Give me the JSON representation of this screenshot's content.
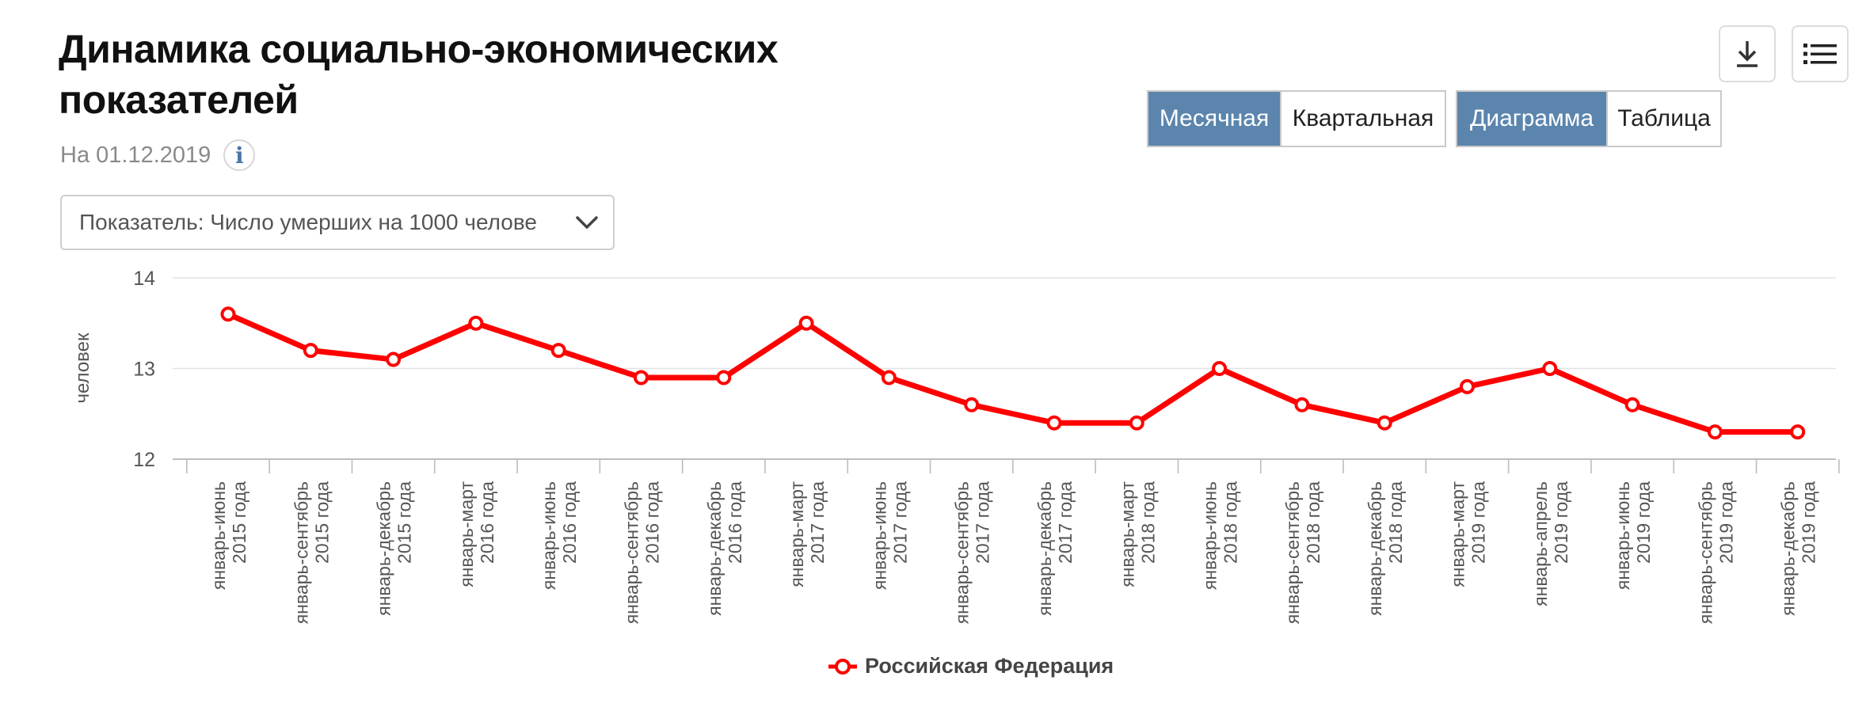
{
  "header": {
    "title": "Динамика социально-экономических показателей",
    "date": "На 01.12.2019",
    "info_label": "i"
  },
  "indicator": {
    "label": "Показатель: Число умерших на 1000 челове"
  },
  "period_toggle": {
    "monthly": "Месячная",
    "quarterly": "Квартальная",
    "active": "monthly"
  },
  "view_toggle": {
    "chart": "Диаграмма",
    "table": "Таблица",
    "active": "chart"
  },
  "icons": {
    "download": "download-icon",
    "menu": "list-menu-icon",
    "info": "info-icon",
    "chevron": "chevron-down-icon"
  },
  "colors": {
    "accent": "#5b85ad",
    "series": "#ff0000"
  },
  "chart_data": {
    "type": "line",
    "ylabel": "человек",
    "ylim": [
      12,
      14
    ],
    "yticks": [
      12,
      13,
      14
    ],
    "grid": true,
    "legend_position": "bottom-center",
    "categories": [
      [
        "январь-июнь",
        "2015 года"
      ],
      [
        "январь-сентябрь",
        "2015 года"
      ],
      [
        "январь-декабрь",
        "2015 года"
      ],
      [
        "январь-март",
        "2016 года"
      ],
      [
        "январь-июнь",
        "2016 года"
      ],
      [
        "январь-сентябрь",
        "2016 года"
      ],
      [
        "январь-декабрь",
        "2016 года"
      ],
      [
        "январь-март",
        "2017 года"
      ],
      [
        "январь-июнь",
        "2017 года"
      ],
      [
        "январь-сентябрь",
        "2017 года"
      ],
      [
        "январь-декабрь",
        "2017 года"
      ],
      [
        "январь-март",
        "2018 года"
      ],
      [
        "январь-июнь",
        "2018 года"
      ],
      [
        "январь-сентябрь",
        "2018 года"
      ],
      [
        "январь-декабрь",
        "2018 года"
      ],
      [
        "январь-март",
        "2019 года"
      ],
      [
        "январь-апрель",
        "2019 года"
      ],
      [
        "январь-июнь",
        "2019 года"
      ],
      [
        "январь-сентябрь",
        "2019 года"
      ],
      [
        "январь-декабрь",
        "2019 года"
      ]
    ],
    "series": [
      {
        "name": "Российская Федерация",
        "color": "#ff0000",
        "values": [
          13.6,
          13.2,
          13.1,
          13.5,
          13.2,
          12.9,
          12.9,
          13.5,
          12.9,
          12.6,
          12.4,
          12.4,
          13.0,
          12.6,
          12.4,
          12.8,
          13.0,
          12.6,
          12.3,
          12.3
        ]
      }
    ]
  }
}
